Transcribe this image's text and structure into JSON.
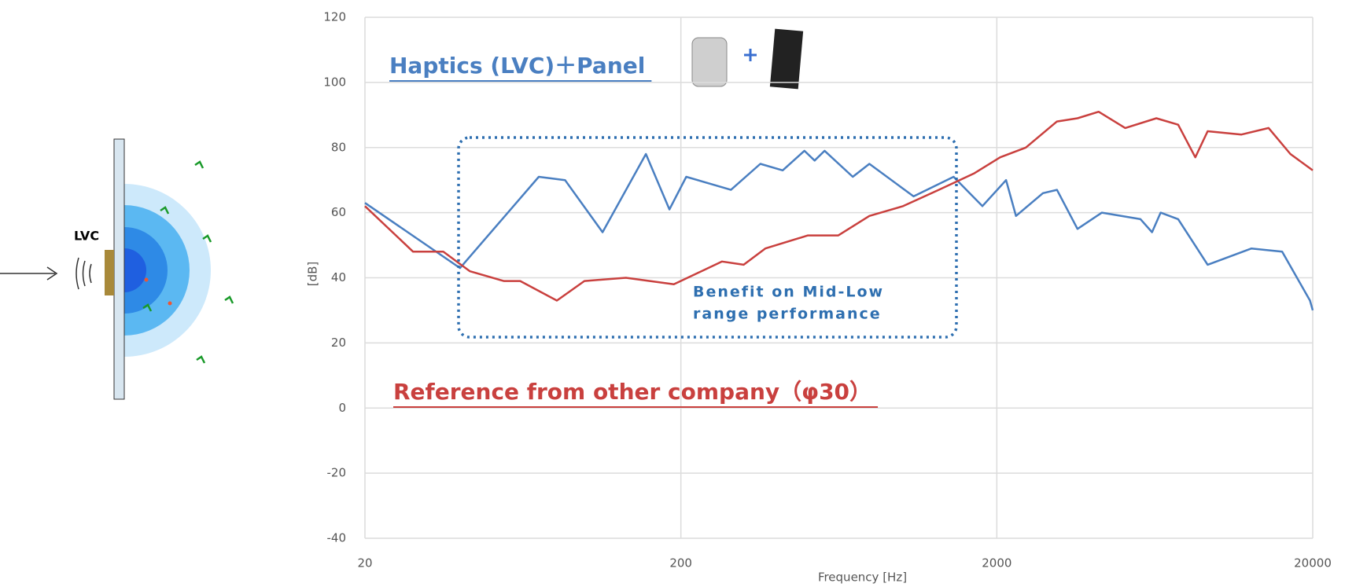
{
  "chart_data": {
    "type": "line",
    "xlabel": "Frequency [Hz]",
    "ylabel": "[dB]",
    "xscale": "log",
    "xlim": [
      20,
      20000
    ],
    "xticks": [
      20,
      200,
      2000,
      20000
    ],
    "ylim": [
      -40,
      120
    ],
    "yticks": [
      -40,
      -20,
      0,
      20,
      40,
      60,
      80,
      100,
      120
    ],
    "grid": true,
    "annotation": [
      "Benefit on Mid-Low",
      "range performance"
    ],
    "series": [
      {
        "name": "Haptics (LVC)＋Panel",
        "color": "#4a7fc1",
        "x": [
          20,
          40,
          71,
          86,
          113,
          155,
          184,
          208,
          288,
          357,
          420,
          492,
          530,
          570,
          700,
          790,
          1090,
          1460,
          1800,
          2140,
          2300,
          2800,
          3100,
          3600,
          4300,
          5700,
          6200,
          6600,
          7500,
          9300,
          12800,
          16000,
          19600,
          20000
        ],
        "values": [
          63,
          43,
          71,
          70,
          54,
          78,
          61,
          71,
          67,
          75,
          73,
          79,
          76,
          79,
          71,
          75,
          65,
          71,
          62,
          70,
          59,
          66,
          67,
          55,
          60,
          58,
          54,
          60,
          58,
          44,
          49,
          48,
          33,
          30
        ]
      },
      {
        "name": "Reference from other company（φ30）",
        "color": "#c9403e",
        "x": [
          20,
          28.4,
          35.4,
          43,
          55,
          62,
          81,
          99,
          134,
          190,
          270,
          316,
          370,
          505,
          630,
          790,
          1010,
          1310,
          1690,
          2050,
          2470,
          3100,
          3600,
          4200,
          5100,
          6400,
          7500,
          8500,
          9300,
          11900,
          14500,
          17000,
          20000
        ],
        "values": [
          62,
          48,
          48,
          42,
          39,
          39,
          33,
          39,
          40,
          38,
          45,
          44,
          49,
          53,
          53,
          59,
          62,
          67,
          72,
          77,
          80,
          88,
          89,
          91,
          86,
          89,
          87,
          77,
          85,
          84,
          86,
          78,
          73
        ]
      }
    ]
  },
  "diagram": {
    "label": "LVC"
  }
}
